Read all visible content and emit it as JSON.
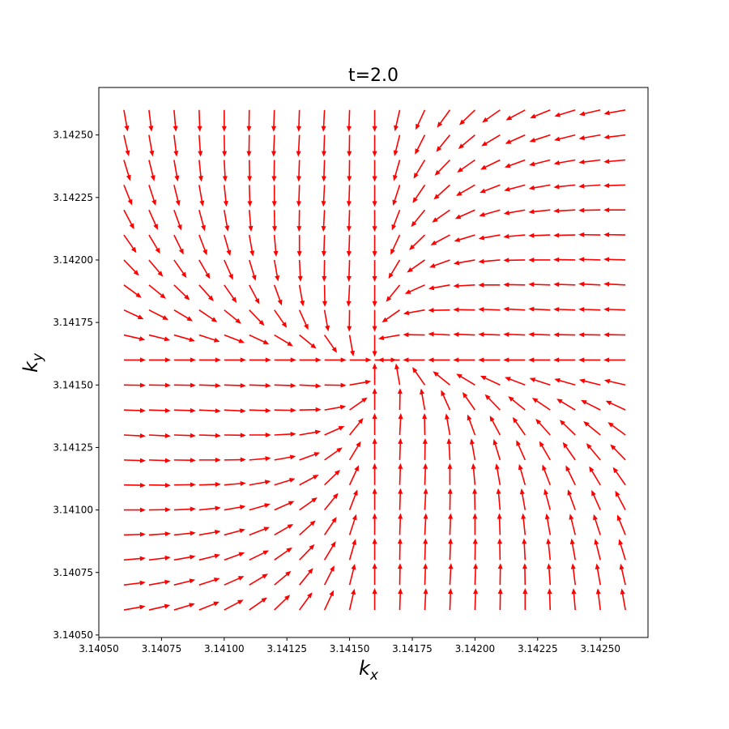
{
  "chart_data": {
    "type": "quiver",
    "title": "t=2.0",
    "xlabel": {
      "text": "k",
      "subscript": "x"
    },
    "ylabel": {
      "text": "k",
      "subscript": "y"
    },
    "color": "#ff0000",
    "grid": false,
    "xlim": [
      3.1405,
      3.14269
    ],
    "ylim": [
      3.14049,
      3.14269
    ],
    "xticks": [
      {
        "value": 3.1405,
        "label": "3.14050"
      },
      {
        "value": 3.14075,
        "label": "3.14075"
      },
      {
        "value": 3.141,
        "label": "3.14100"
      },
      {
        "value": 3.14125,
        "label": "3.14125"
      },
      {
        "value": 3.1415,
        "label": "3.14150"
      },
      {
        "value": 3.14175,
        "label": "3.14175"
      },
      {
        "value": 3.142,
        "label": "3.14200"
      },
      {
        "value": 3.14225,
        "label": "3.14225"
      },
      {
        "value": 3.1425,
        "label": "3.14250"
      }
    ],
    "yticks": [
      {
        "value": 3.1405,
        "label": "3.14050"
      },
      {
        "value": 3.14075,
        "label": "3.14075"
      },
      {
        "value": 3.141,
        "label": "3.14100"
      },
      {
        "value": 3.14125,
        "label": "3.14125"
      },
      {
        "value": 3.1415,
        "label": "3.14150"
      },
      {
        "value": 3.14175,
        "label": "3.14175"
      },
      {
        "value": 3.142,
        "label": "3.14200"
      },
      {
        "value": 3.14225,
        "label": "3.14225"
      },
      {
        "value": 3.1425,
        "label": "3.14250"
      }
    ],
    "x": [
      3.1406,
      3.1407,
      3.1408,
      3.1409,
      3.141,
      3.1411,
      3.1412,
      3.1413,
      3.1414,
      3.1415,
      3.1416,
      3.1417,
      3.1418,
      3.1419,
      3.142,
      3.1421,
      3.1422,
      3.1423,
      3.1424,
      3.1425,
      3.1426
    ],
    "y": [
      3.1406,
      3.1407,
      3.1408,
      3.1409,
      3.141,
      3.1411,
      3.1412,
      3.1413,
      3.1414,
      3.1415,
      3.1416,
      3.1417,
      3.1418,
      3.1419,
      3.142,
      3.1421,
      3.1422,
      3.1423,
      3.1424,
      3.1425,
      3.1426
    ],
    "angles_deg": [
      [
        10,
        13,
        17,
        22,
        28,
        35,
        44,
        54,
        65,
        77,
        90,
        88,
        87,
        88,
        88,
        89,
        90,
        92,
        95,
        97,
        100
      ],
      [
        7,
        10,
        14,
        18,
        24,
        31,
        40,
        51,
        63,
        76,
        90,
        89,
        88,
        87,
        88,
        89,
        91,
        94,
        97,
        100,
        103
      ],
      [
        5,
        7,
        10,
        14,
        20,
        26,
        35,
        46,
        59,
        74,
        90,
        89,
        88,
        88,
        89,
        91,
        93,
        96,
        100,
        104,
        107
      ],
      [
        2,
        4,
        6,
        10,
        15,
        21,
        30,
        42,
        56,
        72,
        90,
        88,
        87,
        88,
        90,
        92,
        96,
        100,
        104,
        108,
        112
      ],
      [
        0,
        1,
        3,
        6,
        10,
        16,
        24,
        35,
        51,
        69,
        90,
        88,
        87,
        89,
        91,
        95,
        100,
        105,
        110,
        114,
        118
      ],
      [
        359,
        359,
        1,
        2,
        5,
        10,
        17,
        28,
        44,
        65,
        90,
        88,
        88,
        90,
        95,
        100,
        106,
        111,
        116,
        121,
        125
      ],
      [
        358,
        358,
        359,
        0,
        1,
        5,
        10,
        20,
        35,
        59,
        90,
        88,
        89,
        93,
        100,
        107,
        114,
        120,
        125,
        130,
        134
      ],
      [
        357,
        357,
        358,
        358,
        359,
        0,
        3,
        10,
        24,
        51,
        90,
        87,
        91,
        100,
        110,
        118,
        125,
        132,
        136,
        141,
        144
      ],
      [
        358,
        358,
        358,
        357,
        357,
        358,
        359,
        1,
        10,
        35,
        90,
        89,
        100,
        114,
        125,
        134,
        141,
        146,
        149,
        153,
        155
      ],
      [
        359,
        359,
        359,
        358,
        358,
        358,
        358,
        357,
        359,
        10,
        90,
        100,
        125,
        141,
        149,
        155,
        159,
        162,
        164,
        166,
        167
      ],
      [
        0,
        0,
        0,
        0,
        0,
        0,
        0,
        0,
        0,
        0,
        0,
        180,
        180,
        180,
        180,
        180,
        180,
        180,
        180,
        180,
        180
      ],
      [
        347,
        346,
        344,
        342,
        339,
        335,
        329,
        321,
        305,
        280,
        270,
        190,
        179,
        177,
        178,
        178,
        178,
        178,
        179,
        179,
        179
      ],
      [
        335,
        333,
        329,
        326,
        321,
        314,
        305,
        294,
        280,
        269,
        270,
        215,
        190,
        181,
        179,
        178,
        177,
        177,
        178,
        178,
        178
      ],
      [
        324,
        321,
        316,
        312,
        305,
        298,
        290,
        280,
        271,
        267,
        270,
        231,
        204,
        190,
        183,
        180,
        179,
        178,
        178,
        177,
        177
      ],
      [
        314,
        310,
        305,
        300,
        294,
        287,
        280,
        273,
        269,
        268,
        270,
        239,
        215,
        200,
        190,
        185,
        181,
        180,
        179,
        178,
        178
      ],
      [
        305,
        301,
        296,
        291,
        286,
        280,
        275,
        270,
        268,
        268,
        270,
        245,
        224,
        208,
        197,
        190,
        185,
        182,
        181,
        179,
        179
      ],
      [
        298,
        294,
        290,
        285,
        280,
        275,
        271,
        269,
        267,
        268,
        270,
        249,
        231,
        215,
        204,
        196,
        190,
        186,
        183,
        181,
        180
      ],
      [
        292,
        288,
        284,
        280,
        276,
        272,
        270,
        268,
        267,
        268,
        270,
        252,
        236,
        222,
        210,
        201,
        195,
        190,
        186,
        184,
        182
      ],
      [
        287,
        284,
        280,
        276,
        273,
        271,
        269,
        268,
        268,
        269,
        270,
        254,
        239,
        226,
        215,
        206,
        200,
        194,
        190,
        187,
        185
      ],
      [
        283,
        280,
        277,
        274,
        271,
        269,
        268,
        267,
        268,
        269,
        270,
        256,
        243,
        231,
        220,
        211,
        204,
        198,
        194,
        190,
        187
      ],
      [
        280,
        277,
        275,
        272,
        270,
        269,
        268,
        268,
        267,
        268,
        270,
        257,
        245,
        234,
        224,
        215,
        208,
        202,
        197,
        193,
        190
      ]
    ]
  }
}
